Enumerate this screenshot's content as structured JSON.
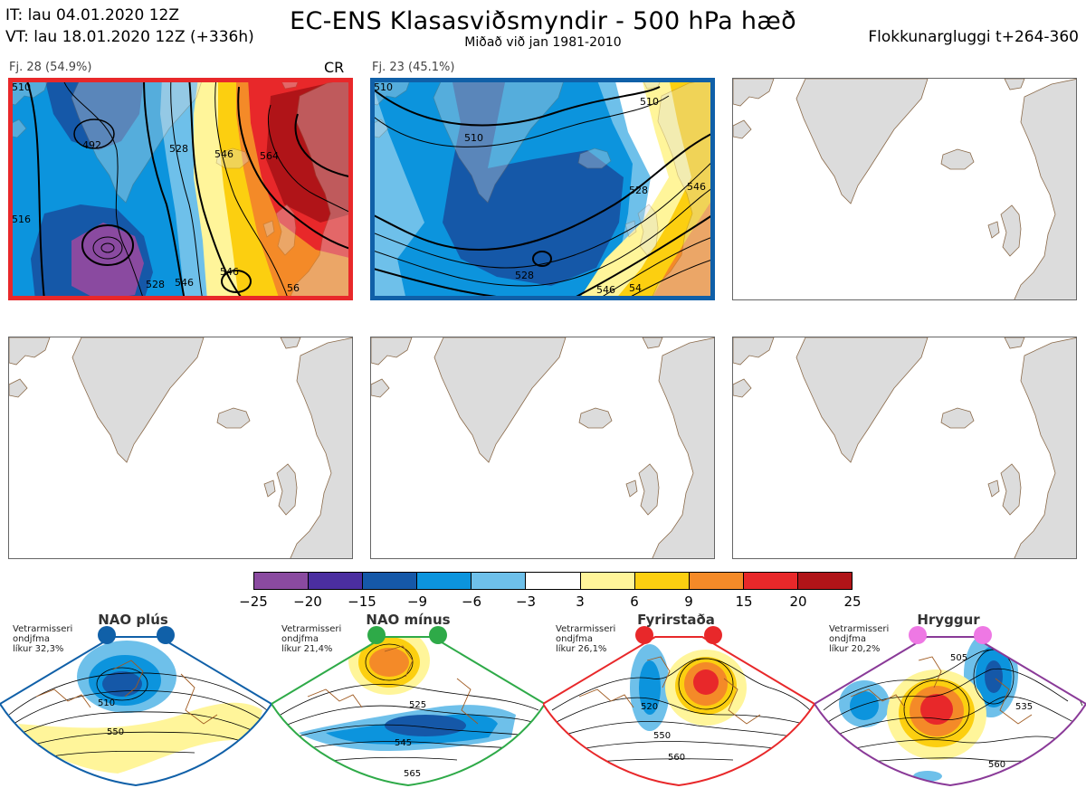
{
  "header": {
    "it_line": "IT: lau 04.01.2020 12Z",
    "vt_line": "VT: lau 18.01.2020 12Z  (+336h)",
    "title": "EC-ENS Klasasviðsmyndir - 500 hPa hæð",
    "subtitle": "Miðað við jan 1981-2010",
    "window": "Flokkunargluggi t+264-360"
  },
  "clusters": [
    {
      "label": "Fj. 28 (54.9%)",
      "tag": "CR",
      "border_color": "#e8282a",
      "contour_labels": [
        "510",
        "492",
        "528",
        "546",
        "564",
        "546",
        "516",
        "528",
        "546",
        "56"
      ]
    },
    {
      "label": "Fj. 23 (45.1%)",
      "tag": "",
      "border_color": "#1060a8",
      "contour_labels": [
        "510",
        "510",
        "528",
        "546",
        "528",
        "510",
        "546",
        "54"
      ]
    }
  ],
  "colorbar": {
    "tick_labels": [
      "−25",
      "−20",
      "−15",
      "−9",
      "−6",
      "−3",
      "3",
      "6",
      "9",
      "15",
      "20",
      "25"
    ],
    "colors": [
      "#8a4aa0",
      "#4b2ea0",
      "#1558a8",
      "#0c94dd",
      "#6ec0ea",
      "#ffffff",
      "#fff59a",
      "#fccf10",
      "#f48a28",
      "#e8282a",
      "#b01418"
    ]
  },
  "regimes": [
    {
      "name": "NAO plús",
      "info": [
        "Vetrarmisseri",
        "ondjfma",
        "líkur 32,3%"
      ],
      "color": "#1060a8",
      "contour_labels": [
        "510",
        "550"
      ]
    },
    {
      "name": "NAO mínus",
      "info": [
        "Vetrarmisseri",
        "ondjfma",
        "líkur 21,4%"
      ],
      "color": "#2eaa48",
      "contour_labels": [
        "525",
        "545",
        "565"
      ]
    },
    {
      "name": "Fyrirstaða",
      "info": [
        "Vetrarmisseri",
        "ondjfma",
        "líkur 26,1%"
      ],
      "color": "#e8282a",
      "contour_labels": [
        "520",
        "550",
        "560"
      ]
    },
    {
      "name": "Hryggur",
      "info": [
        "Vetrarmisseri",
        "ondjfma",
        "líkur 20,2%"
      ],
      "color": "#8a3a98",
      "marker_color": "#ee78e4",
      "contour_labels": [
        "505",
        "535",
        "560"
      ]
    }
  ]
}
